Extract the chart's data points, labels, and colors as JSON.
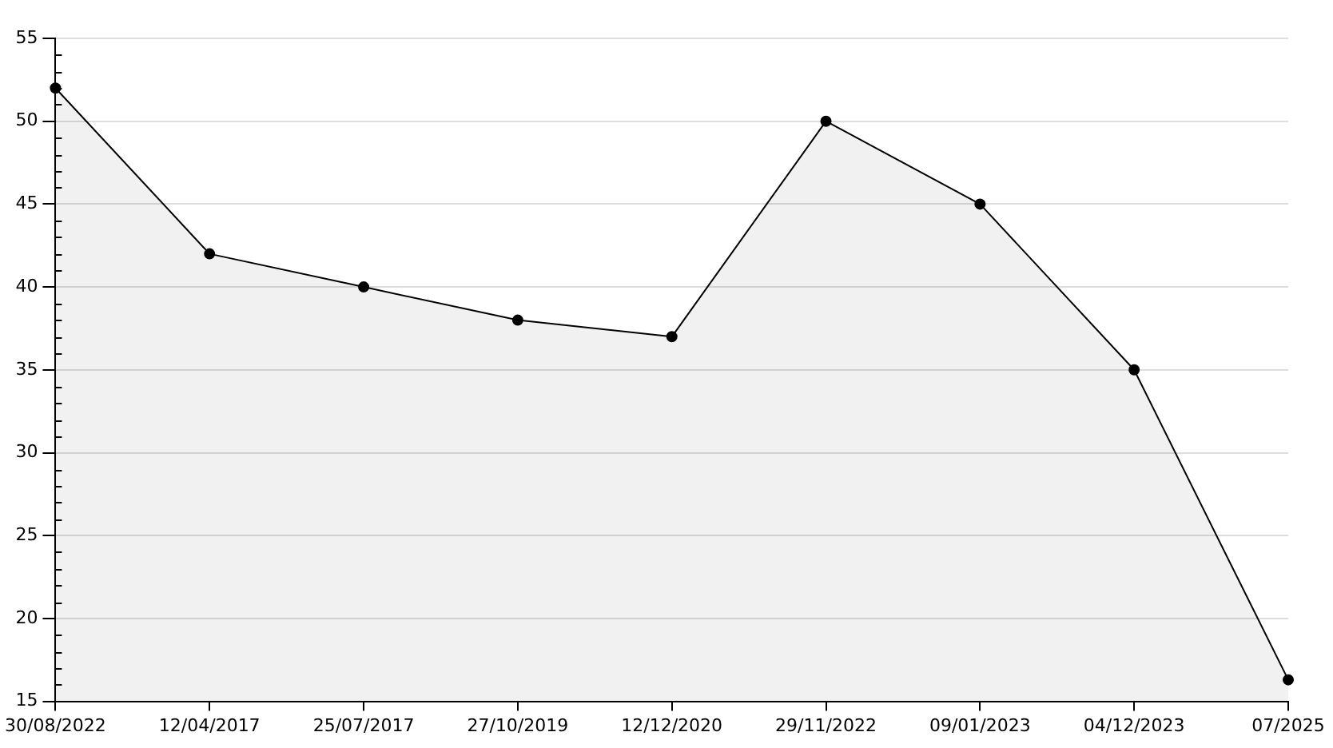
{
  "chart_data": {
    "type": "area",
    "categories": [
      "30/08/2022",
      "12/04/2017",
      "25/07/2017",
      "27/10/2019",
      "12/12/2020",
      "29/11/2022",
      "09/01/2023",
      "04/12/2023",
      "07/2025"
    ],
    "series": [
      {
        "color": "#000000",
        "values": [
          52,
          42,
          40,
          38,
          37,
          50,
          45,
          35,
          16.3
        ]
      }
    ],
    "ylim": [
      15,
      55
    ],
    "yticks": [
      15,
      20,
      25,
      30,
      35,
      40,
      45,
      50,
      55
    ],
    "grid": "y",
    "marker": "circle"
  }
}
